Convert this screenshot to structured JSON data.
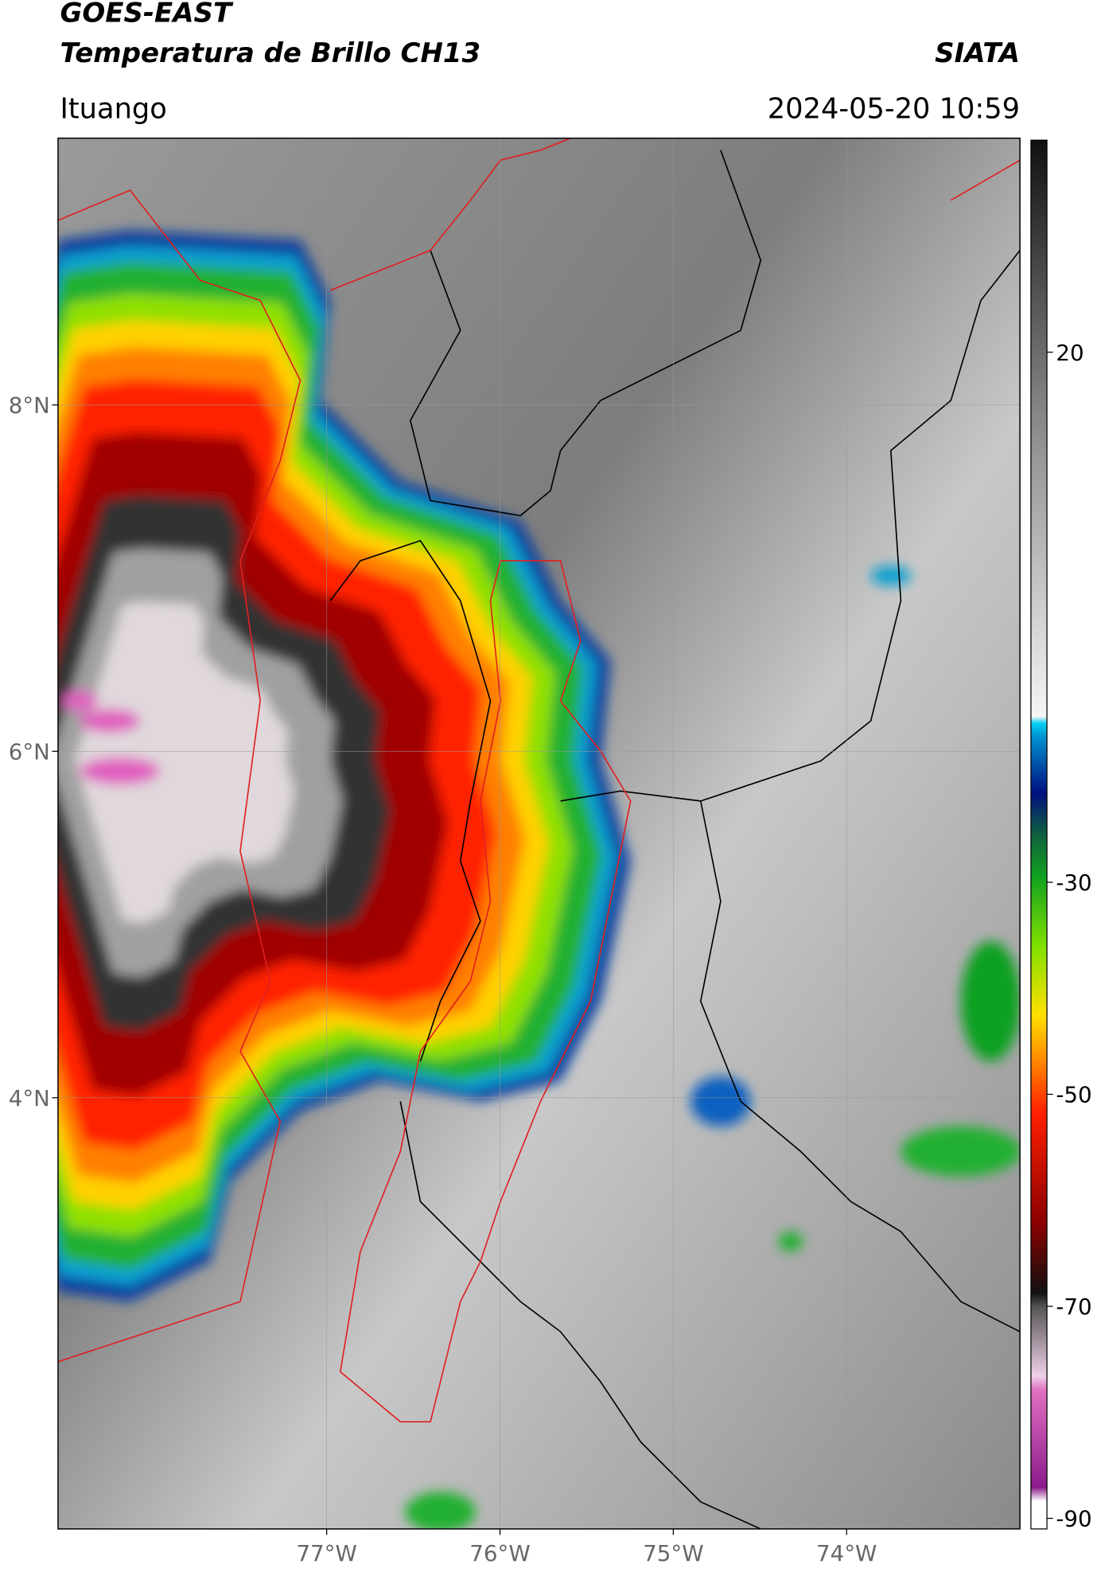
{
  "chart_data": {
    "type": "map",
    "title": "GOES-EAST",
    "subtitle": "Temperatura de Brillo CH13",
    "source": "SIATA",
    "location": "Ituango",
    "datetime": "2024-05-20 10:59",
    "xlim": [
      -78.55,
      -73.0
    ],
    "ylim": [
      1.51,
      9.54
    ],
    "xticks": [
      {
        "value": -77,
        "label": "77°W"
      },
      {
        "value": -76,
        "label": "76°W"
      },
      {
        "value": -75,
        "label": "75°W"
      },
      {
        "value": -74,
        "label": "74°W"
      }
    ],
    "yticks": [
      {
        "value": 8,
        "label": "8°N"
      },
      {
        "value": 6,
        "label": "6°N"
      },
      {
        "value": 4,
        "label": "4°N"
      }
    ],
    "grid": true,
    "colorbar": {
      "clim": [
        -91,
        40
      ],
      "ticks": [
        20,
        -30,
        -50,
        -70,
        -90
      ]
    }
  }
}
